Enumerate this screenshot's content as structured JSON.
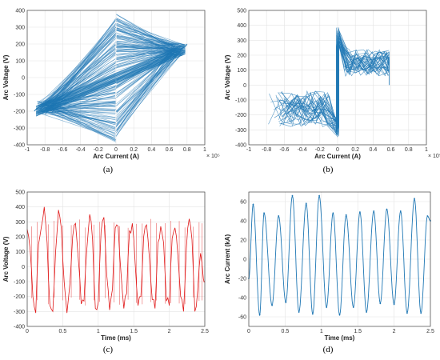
{
  "colors": {
    "blue": "#1f77b4",
    "red": "#e01818",
    "grid": "#e4e4e4",
    "axis": "#444444"
  },
  "chart_data": [
    {
      "type": "scatter",
      "panel": "(a)",
      "caption": "(a)",
      "xlabel": "Arc Current (A)",
      "ylabel": "Arc Voltage (V)",
      "x_exponent_label": "× 10⁵",
      "xlim": [
        -1,
        1
      ],
      "ylim": [
        -400,
        400
      ],
      "xticks": [
        -1,
        -0.8,
        -0.6,
        -0.4,
        -0.2,
        0,
        0.2,
        0.4,
        0.6,
        0.8,
        1
      ],
      "yticks": [
        -400,
        -300,
        -200,
        -100,
        0,
        100,
        200,
        300,
        400
      ],
      "grid": true,
      "description_points": [
        [
          -0.9,
          -185
        ],
        [
          -0.75,
          -160
        ],
        [
          -0.5,
          -100
        ],
        [
          -0.3,
          -55
        ],
        [
          -0.08,
          -20
        ],
        [
          0,
          380
        ],
        [
          0.2,
          310
        ],
        [
          0.4,
          255
        ],
        [
          0.6,
          205
        ],
        [
          0.75,
          160
        ],
        [
          0.08,
          20
        ],
        [
          0.3,
          55
        ],
        [
          0.5,
          100
        ],
        [
          0.75,
          140
        ],
        [
          0,
          -390
        ],
        [
          -0.2,
          -300
        ],
        [
          -0.4,
          -250
        ],
        [
          -0.6,
          -205
        ],
        [
          -0.85,
          -225
        ]
      ]
    },
    {
      "type": "scatter",
      "panel": "(b)",
      "caption": "(b)",
      "xlabel": "Arc Current (A)",
      "ylabel": "Arc Voltage (V)",
      "x_exponent_label": "× 10⁵",
      "xlim": [
        -1,
        1
      ],
      "ylim": [
        -400,
        500
      ],
      "xticks": [
        -1,
        -0.8,
        -0.6,
        -0.4,
        -0.2,
        0,
        0.2,
        0.4,
        0.6,
        0.8,
        1
      ],
      "yticks": [
        -400,
        -300,
        -200,
        -100,
        0,
        100,
        200,
        300,
        400,
        500
      ],
      "grid": true
    },
    {
      "type": "line",
      "panel": "(c)",
      "caption": "(c)",
      "xlabel": "Time (ms)",
      "ylabel": "Arc Voltage (V)",
      "xlim": [
        0,
        2.5
      ],
      "ylim": [
        -400,
        500
      ],
      "xticks": [
        0,
        0.5,
        1,
        1.5,
        2,
        2.5
      ],
      "yticks": [
        -400,
        -300,
        -200,
        -100,
        0,
        100,
        200,
        300,
        400,
        500
      ],
      "grid": true,
      "series": [
        {
          "x": [
            0,
            0.04,
            0.08,
            0.12,
            0.16,
            0.2,
            0.24,
            0.28,
            0.32,
            0.36,
            0.4,
            0.44,
            0.48,
            0.52,
            0.56,
            0.6,
            0.64,
            0.68,
            0.72,
            0.76,
            0.8,
            0.84,
            0.88,
            0.92,
            0.96,
            1.0,
            1.04,
            1.08,
            1.12,
            1.16,
            1.2,
            1.24,
            1.28,
            1.32,
            1.36,
            1.4,
            1.44,
            1.48,
            1.52,
            1.56,
            1.6,
            1.64,
            1.68,
            1.72,
            1.76,
            1.8,
            1.84,
            1.88,
            1.92,
            1.96,
            2.0,
            2.04,
            2.08,
            2.12,
            2.16,
            2.2,
            2.24,
            2.28,
            2.32,
            2.36,
            2.4,
            2.44,
            2.48,
            2.5
          ],
          "y": [
            250,
            120,
            -200,
            -310,
            150,
            270,
            400,
            160,
            -260,
            -300,
            100,
            380,
            260,
            -100,
            -310,
            -120,
            200,
            290,
            50,
            -250,
            -230,
            120,
            350,
            180,
            -280,
            -240,
            240,
            330,
            -60,
            -290,
            -150,
            260,
            270,
            -40,
            -280,
            -180,
            240,
            290,
            20,
            -260,
            -200,
            200,
            280,
            60,
            -220,
            -280,
            160,
            270,
            160,
            -230,
            -260,
            190,
            260,
            80,
            -200,
            -300,
            120,
            320,
            180,
            -300,
            -160,
            90,
            -80,
            -100
          ]
        }
      ]
    },
    {
      "type": "line",
      "panel": "(d)",
      "caption": "(d)",
      "xlabel": "Time (ms)",
      "ylabel": "Arc Current (kA)",
      "xlim": [
        0,
        2.5
      ],
      "ylim": [
        -70,
        70
      ],
      "xticks": [
        0,
        0.5,
        1,
        1.5,
        2,
        2.5
      ],
      "yticks": [
        -60,
        -40,
        -20,
        0,
        20,
        40,
        60
      ],
      "grid": true,
      "series": [
        {
          "x": [
            0,
            0.06,
            0.15,
            0.21,
            0.32,
            0.41,
            0.51,
            0.6,
            0.69,
            0.79,
            0.88,
            0.97,
            1.07,
            1.16,
            1.25,
            1.34,
            1.44,
            1.53,
            1.62,
            1.72,
            1.81,
            1.9,
            2.0,
            2.09,
            2.18,
            2.28,
            2.37,
            2.46,
            2.5
          ],
          "y": [
            -20,
            57,
            -58,
            48,
            -48,
            45,
            -45,
            66,
            -55,
            58,
            -57,
            66,
            -50,
            48,
            -58,
            46,
            -50,
            49,
            -55,
            50,
            -46,
            52,
            -47,
            50,
            -56,
            63,
            -56,
            45,
            40
          ]
        }
      ]
    }
  ]
}
